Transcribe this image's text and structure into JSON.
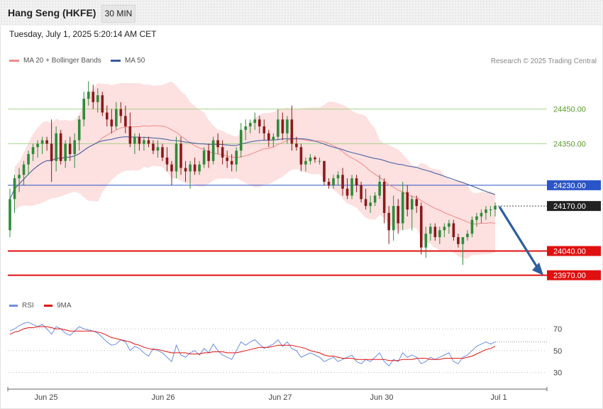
{
  "header": {
    "title": "Hang Seng (HKFE)",
    "timeframe": "30 MIN"
  },
  "date_text": "Tuesday, July 1, 2025 5:20:14 AM CET",
  "legend": {
    "ma20": {
      "label": "MA 20 + Bollinger Bands",
      "color": "#f08a8a"
    },
    "ma50": {
      "label": "MA 50",
      "color": "#3a5aa0"
    }
  },
  "credit": "Research © 2025 Trading Central",
  "rsi_legend": {
    "rsi": {
      "label": "RSI",
      "color": "#6a8fe0"
    },
    "ma9": {
      "label": "9MA",
      "color": "#e01010"
    }
  },
  "colors": {
    "up": "#2e8b3a",
    "down": "#8b1a1a",
    "band": "#fde0e0",
    "green_level": "#a8d38a",
    "blue_level": "#2a55c8",
    "red_level": "#e01010",
    "arrow": "#2f5e9e"
  },
  "chart_data": [
    {
      "type": "candlestick",
      "ylim": [
        23920,
        24560
      ],
      "x_tick_labels": [
        "Jun 25",
        "Jun 26",
        "Jun 27",
        "Jun 30",
        "Jul 1"
      ],
      "levels": [
        {
          "value": 24450.0,
          "label": "24450.00",
          "style": "green-line"
        },
        {
          "value": 24350.0,
          "label": "24350.00",
          "style": "green-line"
        },
        {
          "value": 24230.0,
          "label": "24230.00",
          "style": "blue-line"
        },
        {
          "value": 24170.0,
          "label": "24170.00",
          "style": "last-price"
        },
        {
          "value": 24040.0,
          "label": "24040.00",
          "style": "red-line"
        },
        {
          "value": 23970.0,
          "label": "23970.00",
          "style": "red-line"
        }
      ],
      "projection": {
        "from": 24170,
        "to": 23970,
        "direction": "down"
      },
      "candles": [
        [
          24100,
          24220,
          24080,
          24190
        ],
        [
          24190,
          24260,
          24150,
          24250
        ],
        [
          24250,
          24280,
          24210,
          24260
        ],
        [
          24260,
          24300,
          24230,
          24290
        ],
        [
          24290,
          24330,
          24260,
          24320
        ],
        [
          24320,
          24350,
          24300,
          24340
        ],
        [
          24340,
          24360,
          24310,
          24350
        ],
        [
          24350,
          24370,
          24320,
          24360
        ],
        [
          24360,
          24370,
          24330,
          24350
        ],
        [
          24350,
          24420,
          24240,
          24300
        ],
        [
          24300,
          24400,
          24270,
          24380
        ],
        [
          24380,
          24390,
          24290,
          24300
        ],
        [
          24300,
          24360,
          24280,
          24350
        ],
        [
          24350,
          24370,
          24300,
          24320
        ],
        [
          24320,
          24380,
          24280,
          24360
        ],
        [
          24360,
          24430,
          24330,
          24420
        ],
        [
          24420,
          24500,
          24400,
          24480
        ],
        [
          24480,
          24530,
          24460,
          24500
        ],
        [
          24500,
          24520,
          24450,
          24470
        ],
        [
          24470,
          24510,
          24440,
          24490
        ],
        [
          24490,
          24500,
          24430,
          24440
        ],
        [
          24440,
          24460,
          24400,
          24420
        ],
        [
          24420,
          24450,
          24380,
          24400
        ],
        [
          24400,
          24470,
          24390,
          24450
        ],
        [
          24450,
          24470,
          24410,
          24430
        ],
        [
          24430,
          24460,
          24380,
          24400
        ],
        [
          24400,
          24440,
          24340,
          24350
        ],
        [
          24350,
          24380,
          24320,
          24370
        ],
        [
          24370,
          24380,
          24330,
          24350
        ],
        [
          24350,
          24370,
          24330,
          24360
        ],
        [
          24360,
          24370,
          24340,
          24350
        ],
        [
          24350,
          24360,
          24320,
          24330
        ],
        [
          24330,
          24360,
          24310,
          24340
        ],
        [
          24340,
          24350,
          24300,
          24310
        ],
        [
          24310,
          24340,
          24270,
          24290
        ],
        [
          24290,
          24300,
          24230,
          24270
        ],
        [
          24270,
          24370,
          24250,
          24350
        ],
        [
          24350,
          24370,
          24260,
          24280
        ],
        [
          24280,
          24300,
          24240,
          24270
        ],
        [
          24270,
          24300,
          24220,
          24290
        ],
        [
          24290,
          24310,
          24260,
          24270
        ],
        [
          24270,
          24300,
          24260,
          24290
        ],
        [
          24290,
          24340,
          24280,
          24330
        ],
        [
          24330,
          24350,
          24280,
          24300
        ],
        [
          24300,
          24370,
          24290,
          24360
        ],
        [
          24360,
          24380,
          24320,
          24340
        ],
        [
          24340,
          24360,
          24290,
          24310
        ],
        [
          24310,
          24330,
          24280,
          24300
        ],
        [
          24300,
          24320,
          24270,
          24290
        ],
        [
          24290,
          24340,
          24270,
          24330
        ],
        [
          24330,
          24410,
          24310,
          24390
        ],
        [
          24390,
          24420,
          24360,
          24400
        ],
        [
          24400,
          24420,
          24380,
          24410
        ],
        [
          24410,
          24440,
          24390,
          24420
        ],
        [
          24420,
          24430,
          24380,
          24400
        ],
        [
          24400,
          24420,
          24360,
          24380
        ],
        [
          24380,
          24390,
          24340,
          24360
        ],
        [
          24360,
          24380,
          24340,
          24370
        ],
        [
          24370,
          24450,
          24360,
          24420
        ],
        [
          24420,
          24440,
          24360,
          24380
        ],
        [
          24380,
          24430,
          24350,
          24420
        ],
        [
          24420,
          24460,
          24330,
          24350
        ],
        [
          24350,
          24370,
          24330,
          24340
        ],
        [
          24340,
          24350,
          24270,
          24290
        ],
        [
          24290,
          24310,
          24270,
          24300
        ],
        [
          24300,
          24320,
          24290,
          24310
        ],
        [
          24310,
          24315,
          24295,
          24305
        ],
        [
          24300,
          24310,
          24290,
          24300
        ],
        [
          24300,
          24300,
          24230,
          24240
        ],
        [
          24240,
          24250,
          24220,
          24230
        ],
        [
          24230,
          24260,
          24220,
          24250
        ],
        [
          24250,
          24270,
          24230,
          24260
        ],
        [
          24260,
          24280,
          24200,
          24220
        ],
        [
          24220,
          24250,
          24190,
          24200
        ],
        [
          24200,
          24260,
          24190,
          24250
        ],
        [
          24250,
          24260,
          24210,
          24230
        ],
        [
          24230,
          24240,
          24180,
          24190
        ],
        [
          24190,
          24220,
          24160,
          24170
        ],
        [
          24170,
          24200,
          24150,
          24180
        ],
        [
          24180,
          24210,
          24170,
          24200
        ],
        [
          24200,
          24260,
          24190,
          24240
        ],
        [
          24240,
          24250,
          24120,
          24150
        ],
        [
          24150,
          24170,
          24060,
          24100
        ],
        [
          24100,
          24200,
          24070,
          24170
        ],
        [
          24170,
          24190,
          24090,
          24120
        ],
        [
          24120,
          24240,
          24100,
          24210
        ],
        [
          24210,
          24230,
          24140,
          24160
        ],
        [
          24160,
          24200,
          24100,
          24190
        ],
        [
          24190,
          24200,
          24150,
          24170
        ],
        [
          24170,
          24180,
          24030,
          24050
        ],
        [
          24050,
          24110,
          24020,
          24090
        ],
        [
          24090,
          24120,
          24070,
          24110
        ],
        [
          24110,
          24120,
          24070,
          24080
        ],
        [
          24080,
          24110,
          24060,
          24100
        ],
        [
          24100,
          24120,
          24080,
          24110
        ],
        [
          24110,
          24130,
          24090,
          24120
        ],
        [
          24120,
          24130,
          24070,
          24080
        ],
        [
          24080,
          24090,
          24050,
          24060
        ],
        [
          24060,
          24080,
          24000,
          24080
        ],
        [
          24080,
          24100,
          24070,
          24090
        ],
        [
          24090,
          24140,
          24080,
          24130
        ],
        [
          24130,
          24150,
          24110,
          24140
        ],
        [
          24140,
          24160,
          24120,
          24150
        ],
        [
          24150,
          24170,
          24130,
          24160
        ],
        [
          24160,
          24170,
          24140,
          24160
        ],
        [
          24160,
          24180,
          24140,
          24170
        ]
      ]
    },
    {
      "type": "line",
      "ylim": [
        20,
        85
      ],
      "y_tick_labels": [
        "70",
        "50",
        "30"
      ],
      "series": [
        {
          "name": "RSI",
          "values": [
            68,
            70,
            73,
            75,
            76,
            74,
            72,
            74,
            70,
            65,
            72,
            70,
            66,
            64,
            68,
            72,
            70,
            69,
            68,
            66,
            62,
            58,
            55,
            56,
            60,
            58,
            50,
            54,
            52,
            48,
            45,
            52,
            50,
            48,
            44,
            40,
            55,
            46,
            44,
            48,
            50,
            46,
            52,
            48,
            56,
            50,
            46,
            44,
            42,
            50,
            58,
            55,
            58,
            60,
            56,
            52,
            54,
            56,
            60,
            54,
            58,
            52,
            50,
            44,
            46,
            48,
            46,
            44,
            40,
            42,
            44,
            40,
            42,
            44,
            46,
            40,
            38,
            42,
            40,
            44,
            48,
            40,
            36,
            42,
            40,
            48,
            44,
            46,
            44,
            38,
            40,
            44,
            42,
            44,
            46,
            48,
            40,
            38,
            44,
            46,
            50,
            54,
            56,
            58,
            56,
            58
          ]
        },
        {
          "name": "9MA",
          "values": [
            65,
            67,
            68,
            70,
            71,
            71,
            72,
            72,
            72,
            71,
            70,
            70,
            69,
            68,
            68,
            68,
            68,
            68,
            68,
            67,
            66,
            64,
            62,
            61,
            60,
            59,
            58,
            56,
            55,
            53,
            52,
            51,
            51,
            50,
            49,
            48,
            48,
            48,
            48,
            47,
            47,
            47,
            48,
            48,
            49,
            49,
            49,
            48,
            48,
            48,
            49,
            50,
            51,
            52,
            53,
            53,
            53,
            54,
            55,
            55,
            55,
            55,
            54,
            53,
            52,
            50,
            49,
            48,
            46,
            45,
            45,
            44,
            43,
            43,
            43,
            42,
            42,
            42,
            42,
            42,
            42,
            42,
            41,
            41,
            41,
            42,
            42,
            42,
            43,
            43,
            43,
            42,
            42,
            42,
            43,
            43,
            43,
            43,
            43,
            44,
            45,
            47,
            49,
            51,
            52,
            54
          ]
        }
      ]
    }
  ]
}
